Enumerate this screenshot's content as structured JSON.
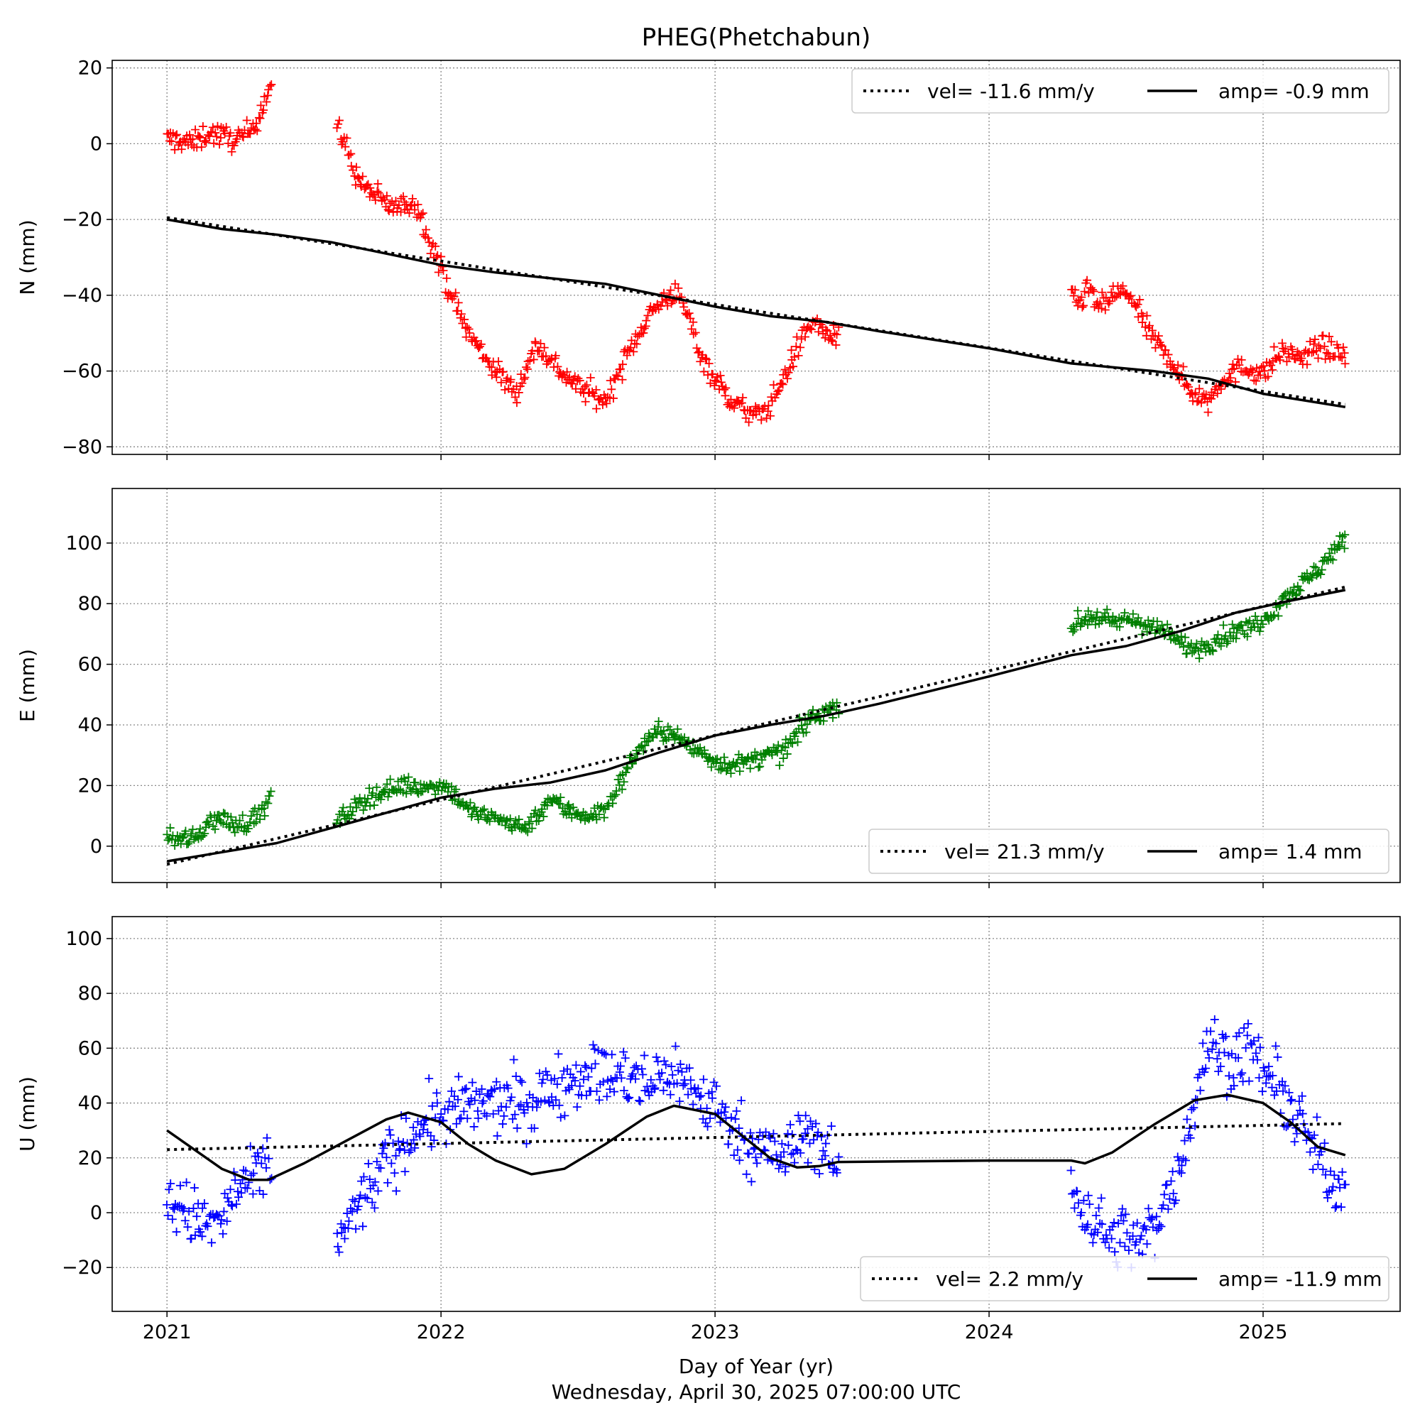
{
  "title": "PHEG(Phetchabun)",
  "xlabel": "Day of Year (yr)",
  "footer": "Wednesday, April 30, 2025 07:00:00 UTC",
  "chart_data": [
    {
      "type": "scatter",
      "component": "N",
      "ylabel": "N (mm)",
      "xlim": [
        2020.8,
        2025.5
      ],
      "ylim": [
        -82,
        22
      ],
      "yticks": [
        -80,
        -60,
        -40,
        -20,
        0,
        20
      ],
      "xticks": [
        2021,
        2022,
        2023,
        2024,
        2025
      ],
      "grid": true,
      "marker": "+",
      "color": "#ff0000",
      "legend": {
        "placement": "upper right",
        "vel_label": "vel= -11.6 mm/y",
        "amp_label": "amp= -0.9 mm"
      },
      "velocity_mm_per_yr": -11.6,
      "seasonal_amplitude_mm": -0.9,
      "trend_line": {
        "x": [
          2021.0,
          2025.3
        ],
        "y": [
          -19.5,
          -68.8
        ]
      },
      "model_curve": {
        "x": [
          2021.0,
          2021.2,
          2021.4,
          2021.6,
          2021.8,
          2022.0,
          2022.2,
          2022.4,
          2022.6,
          2022.8,
          2023.0,
          2023.2,
          2023.4,
          2023.6,
          2024.0,
          2024.3,
          2024.6,
          2024.8,
          2025.0,
          2025.3
        ],
        "y": [
          -20,
          -22.5,
          -24,
          -26,
          -29,
          -32,
          -34,
          -35.5,
          -37,
          -40,
          -43,
          -45.5,
          -47,
          -49.5,
          -54,
          -58,
          -60,
          -62,
          -66,
          -69.5
        ]
      },
      "observations": [
        {
          "segment": 1,
          "x": [
            2021.0,
            2021.05,
            2021.1,
            2021.15,
            2021.2,
            2021.25,
            2021.3,
            2021.33,
            2021.36,
            2021.38
          ],
          "y": [
            1,
            1,
            0,
            3,
            2,
            1,
            3,
            7,
            12,
            16
          ]
        },
        {
          "segment": 2,
          "x": [
            2021.62,
            2021.65,
            2021.7,
            2021.75,
            2021.8,
            2021.85,
            2021.9,
            2021.95,
            2022.0,
            2022.05,
            2022.1,
            2022.15,
            2022.2,
            2022.25,
            2022.28,
            2022.3,
            2022.35,
            2022.4,
            2022.45,
            2022.5,
            2022.55,
            2022.6,
            2022.65,
            2022.7,
            2022.75,
            2022.8,
            2022.85,
            2022.9,
            2022.95,
            2023.0,
            2023.05,
            2023.1,
            2023.15,
            2023.2,
            2023.25,
            2023.3,
            2023.35,
            2023.45
          ],
          "y": [
            4,
            0,
            -10,
            -13,
            -16,
            -17,
            -15,
            -23,
            -33,
            -42,
            -50,
            -55,
            -60,
            -64,
            -65,
            -61,
            -53,
            -57,
            -61,
            -64,
            -66,
            -68,
            -60,
            -53,
            -46,
            -42,
            -39,
            -45,
            -56,
            -62,
            -67,
            -70,
            -72,
            -69,
            -62,
            -54,
            -47,
            -52
          ]
        },
        {
          "segment": 3,
          "x": [
            2024.3,
            2024.33,
            2024.37,
            2024.4,
            2024.45,
            2024.5,
            2024.55,
            2024.6,
            2024.65,
            2024.7,
            2024.75,
            2024.8,
            2024.85,
            2024.9,
            2024.95,
            2025.0,
            2025.05,
            2025.1,
            2025.15,
            2025.2,
            2025.25,
            2025.3
          ],
          "y": [
            -40,
            -42,
            -38,
            -44,
            -40,
            -39,
            -45,
            -52,
            -55,
            -62,
            -66,
            -68,
            -62,
            -60,
            -59,
            -61,
            -56,
            -55,
            -57,
            -53,
            -55,
            -55
          ]
        }
      ]
    },
    {
      "type": "scatter",
      "component": "E",
      "ylabel": "E (mm)",
      "xlim": [
        2020.8,
        2025.5
      ],
      "ylim": [
        -12,
        118
      ],
      "yticks": [
        0,
        20,
        40,
        60,
        80,
        100
      ],
      "xticks": [
        2021,
        2022,
        2023,
        2024,
        2025
      ],
      "grid": true,
      "marker": "+",
      "color": "#008000",
      "legend": {
        "placement": "lower right",
        "vel_label": "vel= 21.3 mm/y",
        "amp_label": "amp= 1.4 mm"
      },
      "velocity_mm_per_yr": 21.3,
      "seasonal_amplitude_mm": 1.4,
      "trend_line": {
        "x": [
          2021.0,
          2025.3
        ],
        "y": [
          -6,
          85.5
        ]
      },
      "model_curve": {
        "x": [
          2021.0,
          2021.2,
          2021.4,
          2021.6,
          2021.8,
          2022.0,
          2022.2,
          2022.4,
          2022.6,
          2022.8,
          2023.0,
          2023.2,
          2023.4,
          2023.6,
          2024.0,
          2024.3,
          2024.5,
          2024.7,
          2024.9,
          2025.1,
          2025.3
        ],
        "y": [
          -5,
          -2,
          1,
          6,
          11,
          16,
          19,
          21,
          25,
          31,
          36.5,
          40,
          43,
          47,
          56,
          63,
          66,
          71,
          77,
          81,
          84.5
        ]
      },
      "observations": [
        {
          "segment": 1,
          "x": [
            2021.0,
            2021.05,
            2021.1,
            2021.15,
            2021.2,
            2021.25,
            2021.3,
            2021.35,
            2021.38
          ],
          "y": [
            2,
            3,
            2,
            8,
            9,
            7,
            8,
            12,
            16
          ]
        },
        {
          "segment": 2,
          "x": [
            2021.62,
            2021.65,
            2021.7,
            2021.75,
            2021.8,
            2021.85,
            2021.9,
            2021.95,
            2022.0,
            2022.05,
            2022.1,
            2022.15,
            2022.2,
            2022.25,
            2022.3,
            2022.35,
            2022.4,
            2022.45,
            2022.5,
            2022.55,
            2022.6,
            2022.65,
            2022.7,
            2022.75,
            2022.8,
            2022.85,
            2022.9,
            2022.95,
            2023.0,
            2023.05,
            2023.1,
            2023.15,
            2023.2,
            2023.25,
            2023.3,
            2023.35,
            2023.45
          ],
          "y": [
            8,
            10,
            14,
            17,
            18,
            20,
            20,
            19,
            21,
            17,
            12,
            10,
            9,
            8,
            6,
            10,
            16,
            12,
            11,
            10,
            12,
            20,
            29,
            35,
            38,
            37,
            33,
            31,
            28,
            27,
            27,
            29,
            30,
            31,
            37,
            42,
            47
          ]
        },
        {
          "segment": 3,
          "x": [
            2024.3,
            2024.35,
            2024.4,
            2024.45,
            2024.5,
            2024.55,
            2024.6,
            2024.65,
            2024.7,
            2024.75,
            2024.8,
            2024.85,
            2024.9,
            2024.95,
            2025.0,
            2025.05,
            2025.1,
            2025.15,
            2025.2,
            2025.25,
            2025.3
          ],
          "y": [
            72,
            75,
            76,
            73,
            75,
            74,
            72,
            70,
            67,
            65,
            67,
            69,
            71,
            72,
            75,
            79,
            84,
            87,
            91,
            97,
            101
          ]
        }
      ]
    },
    {
      "type": "scatter",
      "component": "U",
      "ylabel": "U (mm)",
      "xlim": [
        2020.8,
        2025.5
      ],
      "ylim": [
        -36,
        108
      ],
      "yticks": [
        -20,
        0,
        20,
        40,
        60,
        80,
        100
      ],
      "xticks": [
        2021,
        2022,
        2023,
        2024,
        2025
      ],
      "grid": true,
      "marker": "+",
      "color": "#0000ff",
      "legend": {
        "placement": "lower right",
        "vel_label": "vel= 2.2 mm/y",
        "amp_label": "amp= -11.9 mm"
      },
      "velocity_mm_per_yr": 2.2,
      "seasonal_amplitude_mm": -11.9,
      "trend_line": {
        "x": [
          2021.0,
          2025.3
        ],
        "y": [
          23,
          32.5
        ]
      },
      "model_curve": {
        "x": [
          2021.0,
          2021.1,
          2021.2,
          2021.3,
          2021.37,
          2021.5,
          2021.65,
          2021.8,
          2021.88,
          2022.0,
          2022.1,
          2022.2,
          2022.33,
          2022.45,
          2022.6,
          2022.75,
          2022.85,
          2023.0,
          2023.1,
          2023.2,
          2023.3,
          2023.38,
          2023.45,
          2024.0,
          2024.3,
          2024.35,
          2024.45,
          2024.6,
          2024.75,
          2024.87,
          2025.0,
          2025.1,
          2025.2,
          2025.3
        ],
        "y": [
          30,
          23,
          16,
          12,
          12,
          18,
          26,
          34,
          36.5,
          33,
          25,
          19,
          14,
          16,
          25,
          35,
          39,
          36,
          28,
          20,
          16.5,
          17,
          18.5,
          19,
          19,
          18,
          22,
          32,
          41,
          43,
          40,
          33,
          24,
          21
        ]
      },
      "observations": [
        {
          "segment": 1,
          "x": [
            2021.0,
            2021.05,
            2021.1,
            2021.15,
            2021.2,
            2021.25,
            2021.3,
            2021.35,
            2021.38
          ],
          "y": [
            5,
            2,
            -2,
            -5,
            -3,
            8,
            10,
            15,
            20
          ]
        },
        {
          "segment": 2,
          "x": [
            2021.62,
            2021.66,
            2021.7,
            2021.75,
            2021.8,
            2021.85,
            2021.9,
            2021.95,
            2022.0,
            2022.05,
            2022.1,
            2022.15,
            2022.2,
            2022.25,
            2022.3,
            2022.35,
            2022.4,
            2022.45,
            2022.5,
            2022.55,
            2022.6,
            2022.65,
            2022.7,
            2022.75,
            2022.8,
            2022.85,
            2022.9,
            2022.95,
            2023.0,
            2023.05,
            2023.1,
            2023.15,
            2023.2,
            2023.25,
            2023.3,
            2023.35,
            2023.45
          ],
          "y": [
            -10,
            -5,
            3,
            10,
            18,
            24,
            30,
            33,
            35,
            37,
            38,
            40,
            39,
            41,
            38,
            42,
            45,
            48,
            50,
            52,
            49,
            50,
            48,
            46,
            50,
            52,
            47,
            42,
            38,
            33,
            28,
            24,
            22,
            20,
            25,
            30,
            15
          ]
        },
        {
          "segment": 3,
          "x": [
            2024.3,
            2024.35,
            2024.4,
            2024.45,
            2024.5,
            2024.55,
            2024.6,
            2024.65,
            2024.7,
            2024.75,
            2024.8,
            2024.85,
            2024.9,
            2024.95,
            2025.0,
            2025.05,
            2025.1,
            2025.15,
            2025.2,
            2025.25,
            2025.3
          ],
          "y": [
            8,
            2,
            -5,
            -10,
            -8,
            -12,
            -5,
            5,
            20,
            40,
            62,
            58,
            55,
            60,
            52,
            45,
            38,
            30,
            20,
            12,
            10
          ]
        }
      ]
    }
  ]
}
